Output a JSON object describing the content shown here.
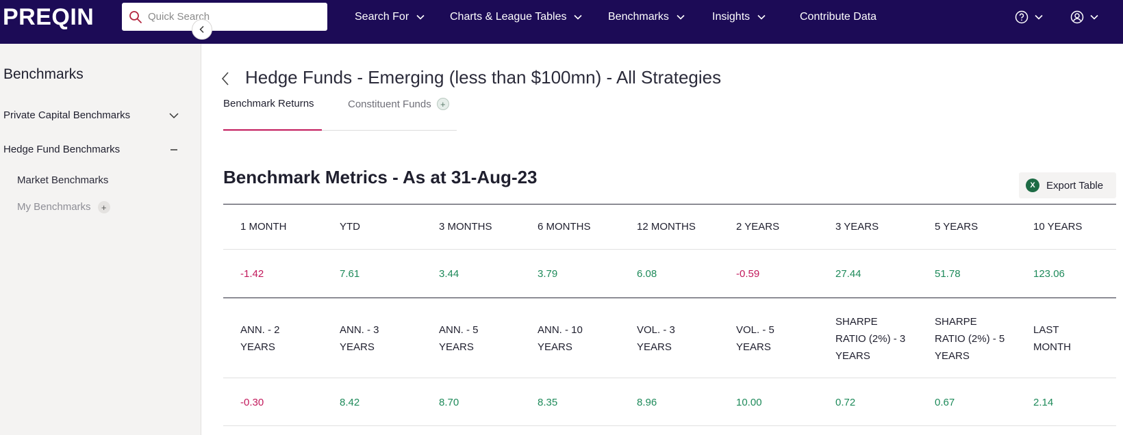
{
  "header": {
    "logo": "PREQIN",
    "search_placeholder": "Quick Search",
    "nav": [
      "Search For",
      "Charts & League Tables",
      "Benchmarks",
      "Insights",
      "Contribute Data"
    ]
  },
  "sidebar": {
    "title": "Benchmarks",
    "items": [
      {
        "label": "Private Capital Benchmarks",
        "state": "collapsed"
      },
      {
        "label": "Hedge Fund Benchmarks",
        "state": "expanded"
      }
    ],
    "subitems": [
      "Market Benchmarks",
      "My Benchmarks"
    ]
  },
  "main": {
    "title": "Hedge Funds - Emerging (less than $100mn) - All Strategies",
    "tabs": [
      "Benchmark Returns",
      "Constituent Funds"
    ],
    "section_title": "Benchmark Metrics - As at 31-Aug-23",
    "export_label": "Export Table",
    "table1": {
      "headers": [
        "1 MONTH",
        "YTD",
        "3 MONTHS",
        "6 MONTHS",
        "12 MONTHS",
        "2 YEARS",
        "3 YEARS",
        "5 YEARS",
        "10 YEARS"
      ],
      "values": [
        "-1.42",
        "7.61",
        "3.44",
        "3.79",
        "6.08",
        "-0.59",
        "27.44",
        "51.78",
        "123.06"
      ]
    },
    "table2": {
      "headers": [
        "ANN. - 2 YEARS",
        "ANN. - 3 YEARS",
        "ANN. - 5 YEARS",
        "ANN. - 10 YEARS",
        "VOL. - 3 YEARS",
        "VOL. - 5 YEARS",
        "SHARPE RATIO (2%) - 3 YEARS",
        "SHARPE RATIO (2%) - 5 YEARS",
        "LAST MONTH"
      ],
      "values": [
        "-0.30",
        "8.42",
        "8.70",
        "8.35",
        "8.96",
        "10.00",
        "0.72",
        "0.67",
        "2.14"
      ]
    }
  },
  "colors": {
    "nav_bg": "#1c0b56",
    "positive": "#1e8a5a",
    "negative": "#c2185b",
    "accent": "#c2185b"
  }
}
